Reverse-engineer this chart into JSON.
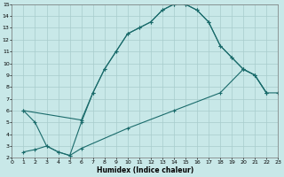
{
  "xlabel": "Humidex (Indice chaleur)",
  "xlim": [
    0,
    23
  ],
  "ylim": [
    2,
    15
  ],
  "xticks": [
    0,
    1,
    2,
    3,
    4,
    5,
    6,
    7,
    8,
    9,
    10,
    11,
    12,
    13,
    14,
    15,
    16,
    17,
    18,
    19,
    20,
    21,
    22,
    23
  ],
  "yticks": [
    2,
    3,
    4,
    5,
    6,
    7,
    8,
    9,
    10,
    11,
    12,
    13,
    14,
    15
  ],
  "bg_color": "#c8e8e8",
  "grid_color": "#a8cccc",
  "line_color": "#1a6b6b",
  "curve1_x": [
    1,
    2,
    3,
    4,
    5,
    6,
    7,
    8,
    9,
    10,
    11,
    12,
    13,
    14,
    15,
    16,
    17,
    18,
    19,
    20,
    21,
    22
  ],
  "curve1_y": [
    6.0,
    5.0,
    3.0,
    2.5,
    2.2,
    5.0,
    7.5,
    9.5,
    11.0,
    12.5,
    13.0,
    13.5,
    14.5,
    15.0,
    15.0,
    14.5,
    13.5,
    11.5,
    10.5,
    9.5,
    9.0,
    7.5
  ],
  "curve2_x": [
    1,
    6,
    7,
    8,
    9,
    10,
    11,
    12,
    13,
    14,
    15,
    16,
    17,
    18,
    19,
    20,
    21,
    22
  ],
  "curve2_y": [
    6.0,
    5.2,
    7.5,
    9.5,
    11.0,
    12.5,
    13.0,
    13.5,
    14.5,
    15.0,
    15.0,
    14.5,
    13.5,
    11.5,
    10.5,
    9.5,
    9.0,
    7.5
  ],
  "curve3_x": [
    1,
    2,
    3,
    4,
    5,
    6,
    10,
    14,
    18,
    20,
    21,
    22,
    23
  ],
  "curve3_y": [
    2.5,
    2.7,
    3.0,
    2.5,
    2.2,
    2.8,
    4.5,
    6.0,
    7.5,
    9.5,
    9.0,
    7.5,
    7.5
  ]
}
